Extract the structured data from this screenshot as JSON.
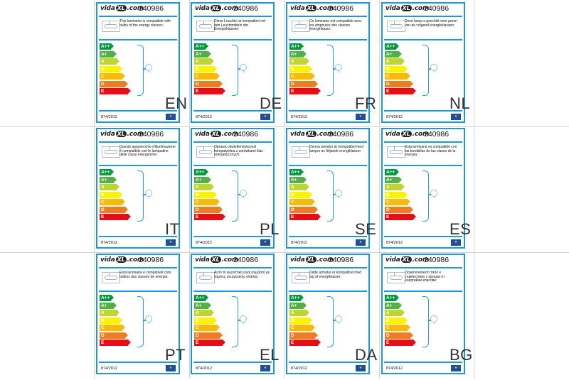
{
  "product_code": "240986",
  "logo": {
    "left": "vida",
    "mid": "XL",
    "right": ".com"
  },
  "regulation": "874/2012",
  "eu_flag_icon": "eu-flag-icon",
  "energy_classes": [
    "A++",
    "A+",
    "A",
    "B",
    "C",
    "D",
    "E"
  ],
  "class_colors": [
    "#009a3e",
    "#52b143",
    "#bcd531",
    "#fff200",
    "#fbb900",
    "#ee7d21",
    "#e30e18"
  ],
  "labels": [
    {
      "lang": "EN",
      "text": "This luminaire is compatible with bulbs of the energy classes:"
    },
    {
      "lang": "DE",
      "text": "Diese Leuchte ist kompatibel mit den Leuchtmitteln der Energieklassen:"
    },
    {
      "lang": "FR",
      "text": "Ce luminaire est compatible avec les ampoules des classes énergétiques:"
    },
    {
      "lang": "NL",
      "text": "Deze lamp is geschikt voor peren van de volgend energieklassen:"
    },
    {
      "lang": "IT",
      "text": "Questo apparecchio d'illuminazione è compatibile con le lampadine delle classi energetiche:"
    },
    {
      "lang": "PL",
      "text": "Oprawa oświetleniowa jest kompatybilna z żarówkami klas energetycznych:"
    },
    {
      "lang": "SE",
      "text": "Denna armatur är kompatibel med lampor av följande energiklasser:"
    },
    {
      "lang": "ES",
      "text": "Esta luminaria es compatible con las bombillas de las clases de la energía:"
    },
    {
      "lang": "PT",
      "text": "Esta luminária é compatível com bulbos das classes de energia:"
    },
    {
      "lang": "EL",
      "text": "Αυτό το φωτιστικό είναι συμβατό με λάμπες ενεργειακής κλάσης:"
    },
    {
      "lang": "DA",
      "text": "Dette armatur er kompatibel med lag af energiklasser:"
    },
    {
      "lang": "BG",
      "text": "Осветителното тяло е съвместимо с крушки от енергийни класове:"
    }
  ]
}
